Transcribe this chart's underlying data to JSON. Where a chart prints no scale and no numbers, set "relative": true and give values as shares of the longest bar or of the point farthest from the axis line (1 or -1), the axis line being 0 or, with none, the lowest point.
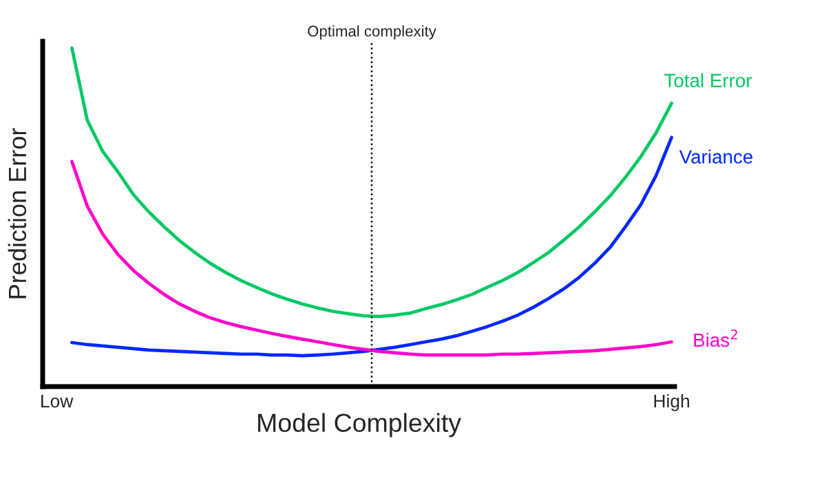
{
  "chart_data": {
    "type": "line",
    "relative": true,
    "xlabel": "Model Complexity",
    "ylabel": "Prediction Error",
    "categories": [
      "Low",
      null,
      null,
      null,
      null,
      null,
      null,
      null,
      null,
      null,
      null,
      null,
      null,
      null,
      null,
      null,
      null,
      null,
      null,
      null,
      null,
      null,
      null,
      null,
      null,
      null,
      null,
      null,
      null,
      null,
      null,
      null,
      null,
      null,
      null,
      null,
      null,
      null,
      null,
      null,
      "High"
    ],
    "grid": false,
    "legend": false,
    "marker": "none",
    "line_style": "solid",
    "series": [
      {
        "name": "Total Error",
        "color": "#00c864",
        "values": [
          null,
          1.0,
          0.787,
          0.695,
          0.634,
          0.567,
          0.516,
          0.472,
          0.431,
          0.396,
          0.364,
          0.337,
          0.313,
          0.293,
          0.274,
          0.258,
          0.244,
          0.232,
          0.222,
          0.215,
          0.209,
          0.207,
          0.211,
          0.217,
          0.23,
          0.242,
          0.256,
          0.272,
          0.293,
          0.313,
          0.337,
          0.366,
          0.396,
          0.433,
          0.472,
          0.516,
          0.563,
          0.618,
          0.679,
          0.75,
          0.837
        ]
      },
      {
        "name": "Variance",
        "color": "#0028ff",
        "values": [
          null,
          0.13,
          0.124,
          0.12,
          0.116,
          0.112,
          0.108,
          0.106,
          0.104,
          0.102,
          0.1,
          0.098,
          0.096,
          0.096,
          0.093,
          0.093,
          0.091,
          0.093,
          0.096,
          0.1,
          0.104,
          0.11,
          0.116,
          0.124,
          0.132,
          0.14,
          0.15,
          0.163,
          0.177,
          0.193,
          0.211,
          0.234,
          0.26,
          0.289,
          0.323,
          0.364,
          0.411,
          0.472,
          0.537,
          0.624,
          0.736
        ]
      },
      {
        "name": "Bias$^{2}$",
        "color": "#ff00cc",
        "values": [
          null,
          0.665,
          0.533,
          0.451,
          0.39,
          0.343,
          0.305,
          0.272,
          0.244,
          0.222,
          0.203,
          0.189,
          0.177,
          0.167,
          0.157,
          0.148,
          0.14,
          0.132,
          0.124,
          0.116,
          0.11,
          0.104,
          0.1,
          0.096,
          0.093,
          0.093,
          0.093,
          0.093,
          0.093,
          0.096,
          0.096,
          0.098,
          0.1,
          0.102,
          0.104,
          0.106,
          0.11,
          0.114,
          0.118,
          0.124,
          0.132
        ]
      }
    ],
    "annotations": [
      "Optimal complexity"
    ]
  }
}
